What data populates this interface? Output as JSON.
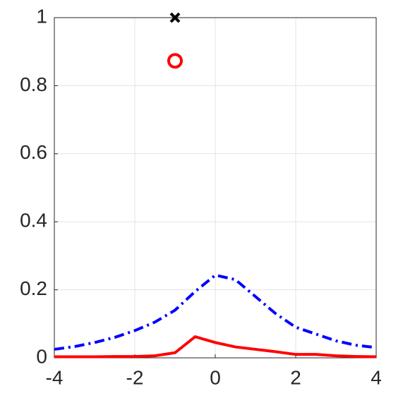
{
  "chart_data": {
    "type": "line",
    "x": [
      -4,
      -3.5,
      -3,
      -2.5,
      -2,
      -1.5,
      -1,
      -0.5,
      0,
      0.5,
      1,
      1.5,
      2,
      2.5,
      3,
      3.5,
      4
    ],
    "series": [
      {
        "color": "#0000ff",
        "line_style": "dashdot",
        "values": [
          0.025,
          0.033,
          0.045,
          0.06,
          0.08,
          0.105,
          0.14,
          0.195,
          0.243,
          0.23,
          0.18,
          0.13,
          0.09,
          0.07,
          0.05,
          0.037,
          0.03
        ]
      },
      {
        "color": "#ff0000",
        "line_style": "solid",
        "values": [
          0.003,
          0.003,
          0.003,
          0.004,
          0.004,
          0.006,
          0.015,
          0.062,
          0.045,
          0.032,
          0.025,
          0.018,
          0.01,
          0.01,
          0.006,
          0.004,
          0.003
        ]
      }
    ],
    "markers": [
      {
        "x": -1,
        "y": 1,
        "symbol": "x",
        "color": "#000000"
      },
      {
        "x": -1,
        "y": 0.873,
        "symbol": "o",
        "color": "#ff0000"
      }
    ],
    "xlim": [
      -4,
      4
    ],
    "xticks": [
      -4,
      -2,
      0,
      2,
      4
    ],
    "ylim": [
      0,
      1
    ],
    "yticks": [
      0,
      0.2,
      0.4,
      0.6,
      0.8,
      1
    ],
    "grid": true
  }
}
